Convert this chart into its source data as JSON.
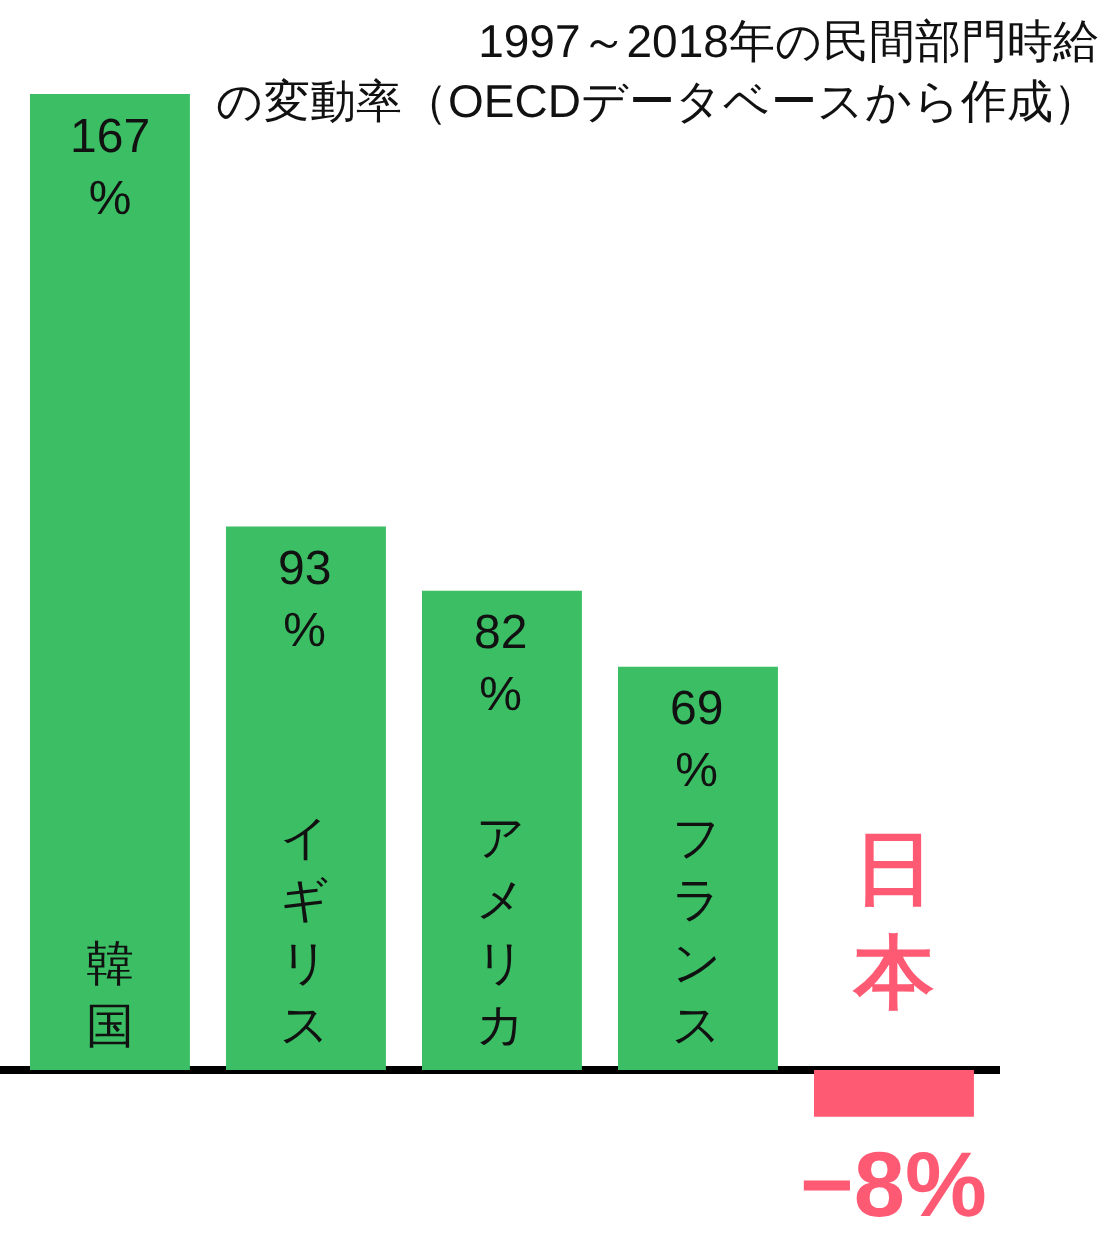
{
  "chart_data": {
    "type": "bar",
    "title": "1997～2018年の民間部門時給の変動率（OECDデータベースから作成）",
    "categories": [
      "韓国",
      "イギリス",
      "アメリカ",
      "フランス",
      "日本"
    ],
    "values": [
      167,
      93,
      82,
      69,
      -8
    ],
    "colors": [
      "#3bbe64",
      "#3bbe64",
      "#3bbe64",
      "#3bbe64",
      "#fe5a74"
    ],
    "value_labels": [
      "167\n%",
      "93\n%",
      "82\n%",
      "69\n%",
      "−8%"
    ]
  }
}
